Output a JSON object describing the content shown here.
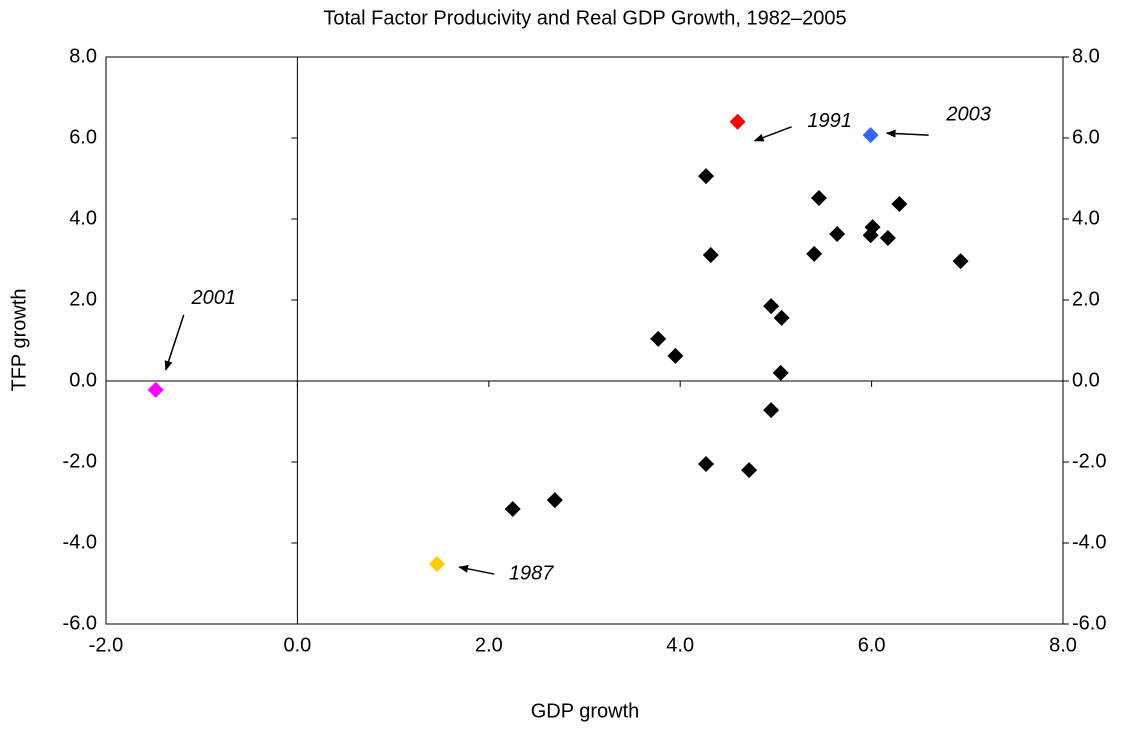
{
  "chart_data": {
    "type": "scatter",
    "title": "Total Factor Producivity and Real GDP Growth, 1982–2005",
    "x_label": "GDP growth",
    "y_label": "TFP growth",
    "xlim": [
      -2,
      8
    ],
    "xticks": [
      {
        "value": -2,
        "label": "-2.0"
      },
      {
        "value": 0,
        "label": "0.0"
      },
      {
        "value": 2,
        "label": "2.0"
      },
      {
        "value": 4,
        "label": "4.0"
      },
      {
        "value": 6,
        "label": "6.0"
      },
      {
        "value": 8,
        "label": "8.0"
      }
    ],
    "ylim": [
      -6,
      8
    ],
    "yticks": [
      {
        "value": -6,
        "label": "-6.0"
      },
      {
        "value": -4,
        "label": "-4.0"
      },
      {
        "value": -2,
        "label": "-2.0"
      },
      {
        "value": 0,
        "label": "0.0"
      },
      {
        "value": 2,
        "label": "2.0"
      },
      {
        "value": 4,
        "label": "4.0"
      },
      {
        "value": 6,
        "label": "6.0"
      },
      {
        "value": 8,
        "label": "8.0"
      }
    ],
    "y2lim": [
      -6,
      8
    ],
    "y2ticks": [
      {
        "value": -6,
        "label": "-6.0"
      },
      {
        "value": -4,
        "label": "-4.0"
      },
      {
        "value": -2,
        "label": "-2.0"
      },
      {
        "value": 0,
        "label": "0.0"
      },
      {
        "value": 2,
        "label": "2.0"
      },
      {
        "value": 4,
        "label": "4.0"
      },
      {
        "value": 6,
        "label": "6.0"
      },
      {
        "value": 8,
        "label": "8.0"
      }
    ],
    "series": [
      {
        "color": "#000000",
        "x": [
          4.27,
          4.32,
          3.77,
          3.95,
          4.95,
          5.06,
          5.05,
          4.95,
          4.27,
          4.72,
          2.25,
          2.69,
          5.45,
          5.4,
          5.64,
          5.99,
          6.01,
          6.17,
          6.29,
          6.93
        ],
        "values": [
          5.06,
          3.11,
          1.04,
          0.62,
          1.85,
          1.56,
          0.2,
          -0.72,
          -2.05,
          -2.2,
          -3.16,
          -2.94,
          4.52,
          3.14,
          3.63,
          3.6,
          3.8,
          3.53,
          4.37,
          2.96
        ]
      },
      {
        "color": "#ff0000",
        "label": "1991",
        "x": [
          4.6
        ],
        "values": [
          6.4
        ]
      },
      {
        "color": "#3366ff",
        "label": "2003",
        "x": [
          5.99
        ],
        "values": [
          6.07
        ]
      },
      {
        "color": "#ff00ff",
        "label": "2001",
        "x": [
          -1.48
        ],
        "values": [
          -0.22
        ]
      },
      {
        "color": "#ffcc00",
        "label": "1987",
        "x": [
          1.46
        ],
        "values": [
          -4.52
        ]
      }
    ]
  }
}
